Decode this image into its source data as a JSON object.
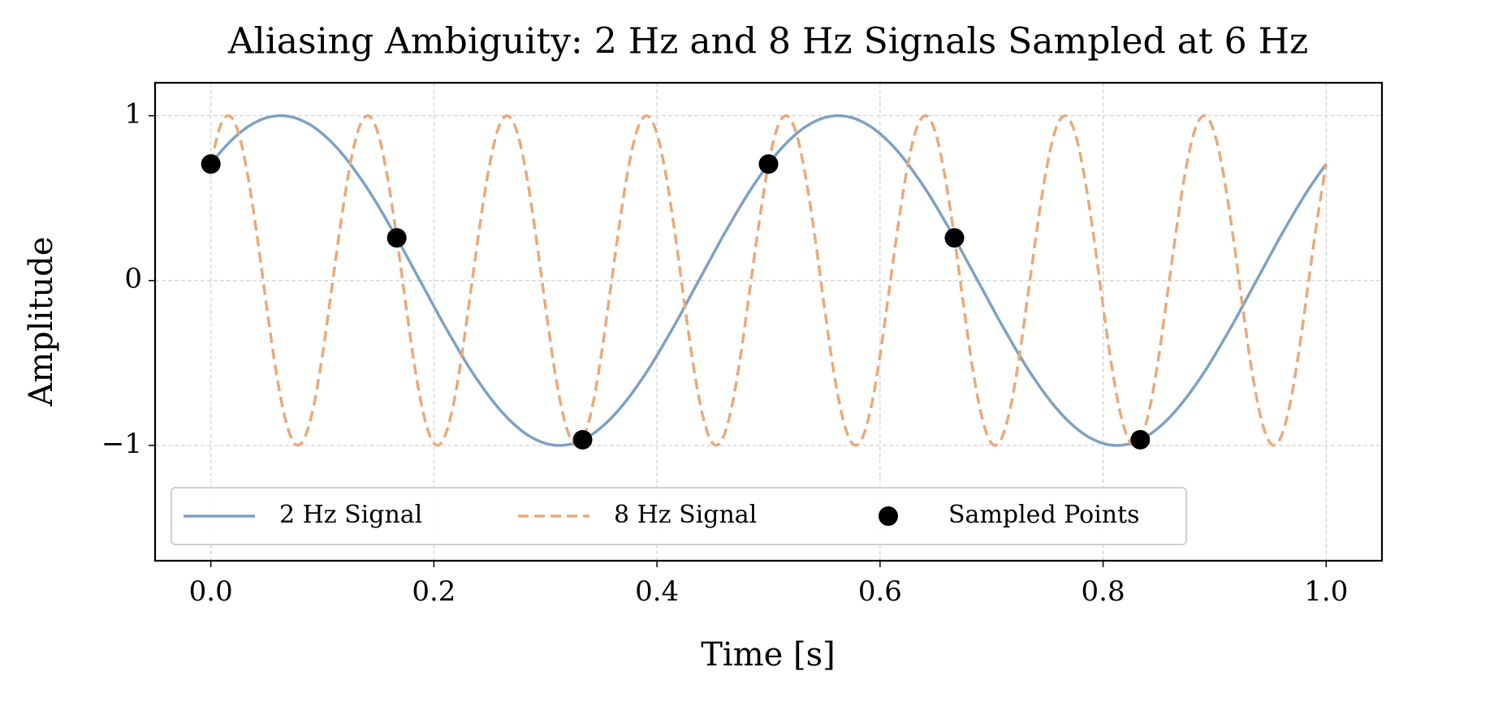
{
  "chart_data": {
    "type": "line",
    "title": "Aliasing Ambiguity: 2 Hz and 8 Hz Signals Sampled at 6 Hz",
    "xlabel": "Time [s]",
    "ylabel": "Amplitude",
    "xlim": [
      -0.05,
      1.05
    ],
    "ylim": [
      -1.7,
      1.2
    ],
    "xticks": [
      {
        "value": 0,
        "label": "0.0"
      },
      0.2,
      0.4,
      0.6,
      0.8,
      {
        "value": 1,
        "label": "1.0"
      }
    ],
    "yticks": [
      {
        "value": -1,
        "label": "−1"
      },
      0,
      1
    ],
    "grid": true,
    "legend": "lower left",
    "x": [
      0,
      0.0083,
      0.0167,
      0.025,
      0.0333,
      0.0417,
      0.05,
      0.0583,
      0.0667,
      0.075,
      0.0833,
      0.0917,
      0.1,
      0.1083,
      0.1167,
      0.125,
      0.1333,
      0.1417,
      0.15,
      0.1583,
      0.1667,
      0.175,
      0.1833,
      0.1917,
      0.2,
      0.2083,
      0.2167,
      0.225,
      0.2333,
      0.2417,
      0.25,
      0.2583,
      0.2667,
      0.275,
      0.2833,
      0.2917,
      0.3,
      0.3083,
      0.3167,
      0.325,
      0.3333,
      0.3417,
      0.35,
      0.3583,
      0.3667,
      0.375,
      0.3833,
      0.3917,
      0.4,
      0.4083,
      0.4167,
      0.425,
      0.4333,
      0.4417,
      0.45,
      0.4583,
      0.4667,
      0.475,
      0.4833,
      0.4917,
      0.5,
      0.5083,
      0.5167,
      0.525,
      0.5333,
      0.5417,
      0.55,
      0.5583,
      0.5667,
      0.575,
      0.5833,
      0.5917,
      0.6,
      0.6083,
      0.6167,
      0.625,
      0.6333,
      0.6417,
      0.65,
      0.6583,
      0.6667,
      0.675,
      0.6833,
      0.6917,
      0.7,
      0.7083,
      0.7167,
      0.725,
      0.7333,
      0.7417,
      0.75,
      0.7583,
      0.7667,
      0.775,
      0.7833,
      0.7917,
      0.8,
      0.8083,
      0.8167,
      0.825,
      0.8333,
      0.8417,
      0.85,
      0.8583,
      0.8667,
      0.875,
      0.8833,
      0.8917,
      0.9,
      0.9083,
      0.9167,
      0.925,
      0.9333,
      0.9417,
      0.95,
      0.9583,
      0.9667,
      0.975,
      0.9833,
      0.9917,
      1
    ],
    "series": [
      {
        "name": "2 Hz Signal",
        "color": "#7da1c4",
        "style": "solid",
        "values": [
          0.707,
          0.777,
          0.839,
          0.891,
          0.934,
          0.966,
          0.988,
          0.999,
          0.999,
          0.988,
          0.966,
          0.934,
          0.891,
          0.839,
          0.777,
          0.707,
          0.629,
          0.545,
          0.454,
          0.358,
          0.259,
          0.156,
          0.052,
          -0.052,
          -0.156,
          -0.259,
          -0.358,
          -0.454,
          -0.545,
          -0.629,
          -0.707,
          -0.777,
          -0.839,
          -0.891,
          -0.934,
          -0.966,
          -0.988,
          -0.999,
          -0.999,
          -0.988,
          -0.966,
          -0.934,
          -0.891,
          -0.839,
          -0.777,
          -0.707,
          -0.629,
          -0.545,
          -0.454,
          -0.358,
          -0.259,
          -0.156,
          -0.052,
          0.052,
          0.156,
          0.259,
          0.358,
          0.454,
          0.545,
          0.629,
          0.707,
          0.777,
          0.839,
          0.891,
          0.934,
          0.966,
          0.988,
          0.999,
          0.999,
          0.988,
          0.966,
          0.934,
          0.891,
          0.839,
          0.777,
          0.707,
          0.629,
          0.545,
          0.454,
          0.358,
          0.259,
          0.156,
          0.052,
          -0.052,
          -0.156,
          -0.259,
          -0.358,
          -0.454,
          -0.545,
          -0.629,
          -0.707,
          -0.777,
          -0.839,
          -0.891,
          -0.934,
          -0.966,
          -0.988,
          -0.999,
          -0.999,
          -0.988,
          -0.966,
          -0.934,
          -0.891,
          -0.839,
          -0.777,
          -0.707,
          -0.629,
          -0.545,
          -0.454,
          -0.358,
          -0.259,
          -0.156,
          -0.052,
          0.052,
          0.156,
          0.259,
          0.358,
          0.454,
          0.545,
          0.629,
          0.707
        ]
      },
      {
        "name": "8 Hz Signal",
        "color": "#e8aa7a",
        "style": "dashed",
        "values": [
          0.707,
          0.934,
          0.999,
          0.891,
          0.629,
          0.259,
          -0.156,
          -0.545,
          -0.839,
          -0.988,
          -0.966,
          -0.777,
          -0.454,
          -0.052,
          0.358,
          0.707,
          0.934,
          0.999,
          0.891,
          0.629,
          0.259,
          -0.156,
          -0.545,
          -0.839,
          -0.988,
          -0.966,
          -0.777,
          -0.454,
          -0.052,
          0.358,
          0.707,
          0.934,
          0.999,
          0.891,
          0.629,
          0.259,
          -0.156,
          -0.545,
          -0.839,
          -0.988,
          -0.966,
          -0.777,
          -0.454,
          -0.052,
          0.358,
          0.707,
          0.934,
          0.999,
          0.891,
          0.629,
          0.259,
          -0.156,
          -0.545,
          -0.839,
          -0.988,
          -0.966,
          -0.777,
          -0.454,
          -0.052,
          0.358,
          0.707,
          0.934,
          0.999,
          0.891,
          0.629,
          0.259,
          -0.156,
          -0.545,
          -0.839,
          -0.988,
          -0.966,
          -0.777,
          -0.454,
          -0.052,
          0.358,
          0.707,
          0.934,
          0.999,
          0.891,
          0.629,
          0.259,
          -0.156,
          -0.545,
          -0.839,
          -0.988,
          -0.966,
          -0.777,
          -0.454,
          -0.052,
          0.358,
          0.707,
          0.934,
          0.999,
          0.891,
          0.629,
          0.259,
          -0.156,
          -0.545,
          -0.839,
          -0.988,
          -0.966,
          -0.777,
          -0.454,
          -0.052,
          0.358,
          0.707,
          0.934,
          0.999,
          0.891,
          0.629,
          0.259,
          -0.156,
          -0.545,
          -0.839,
          -0.988,
          -0.966,
          -0.777,
          -0.454,
          -0.052,
          0.358,
          0.707
        ]
      },
      {
        "name": "Sampled Points",
        "type": "scatter",
        "color": "#000000",
        "x": [
          0,
          0.1667,
          0.3333,
          0.5,
          0.6667,
          0.8333
        ],
        "values": [
          0.707,
          0.259,
          -0.966,
          0.707,
          0.259,
          -0.966
        ]
      }
    ]
  }
}
